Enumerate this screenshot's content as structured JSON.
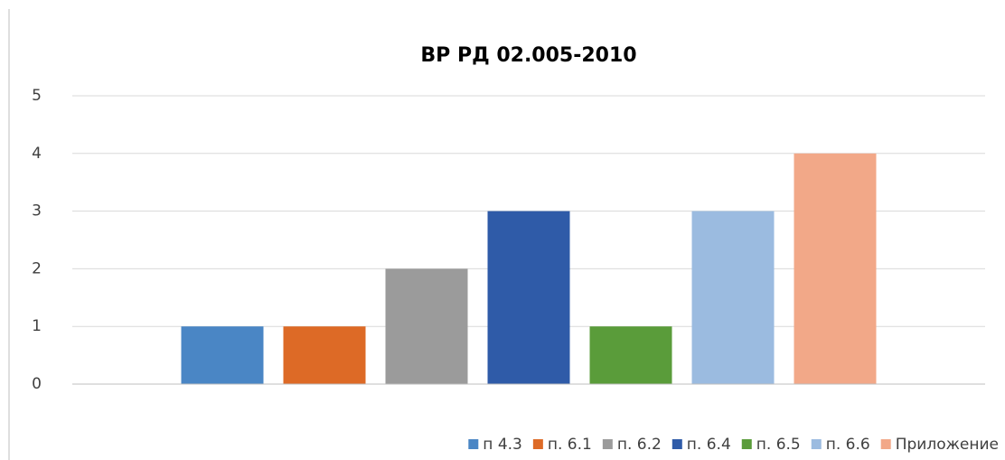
{
  "chart_data": {
    "type": "bar",
    "title": "ВР РД 02.005-2010",
    "categories": [
      null
    ],
    "series": [
      {
        "name": "п 4.3",
        "color": "#4a86c5",
        "values": [
          1
        ]
      },
      {
        "name": "п. 6.1",
        "color": "#dd6a26",
        "values": [
          1
        ]
      },
      {
        "name": "п. 6.2",
        "color": "#9b9b9b",
        "values": [
          2
        ]
      },
      {
        "name": "п. 6.4",
        "color": "#2f5ba8",
        "values": [
          3
        ]
      },
      {
        "name": "п. 6.5",
        "color": "#5a9c3a",
        "values": [
          1
        ]
      },
      {
        "name": "п. 6.6",
        "color": "#9bbbe0",
        "values": [
          3
        ]
      },
      {
        "name": "Приложение",
        "color": "#f2a888",
        "values": [
          4
        ]
      }
    ],
    "ylim": [
      0,
      5
    ],
    "yticks": [
      0,
      1,
      2,
      3,
      4,
      5
    ],
    "grid": true,
    "legend": "bottom"
  }
}
